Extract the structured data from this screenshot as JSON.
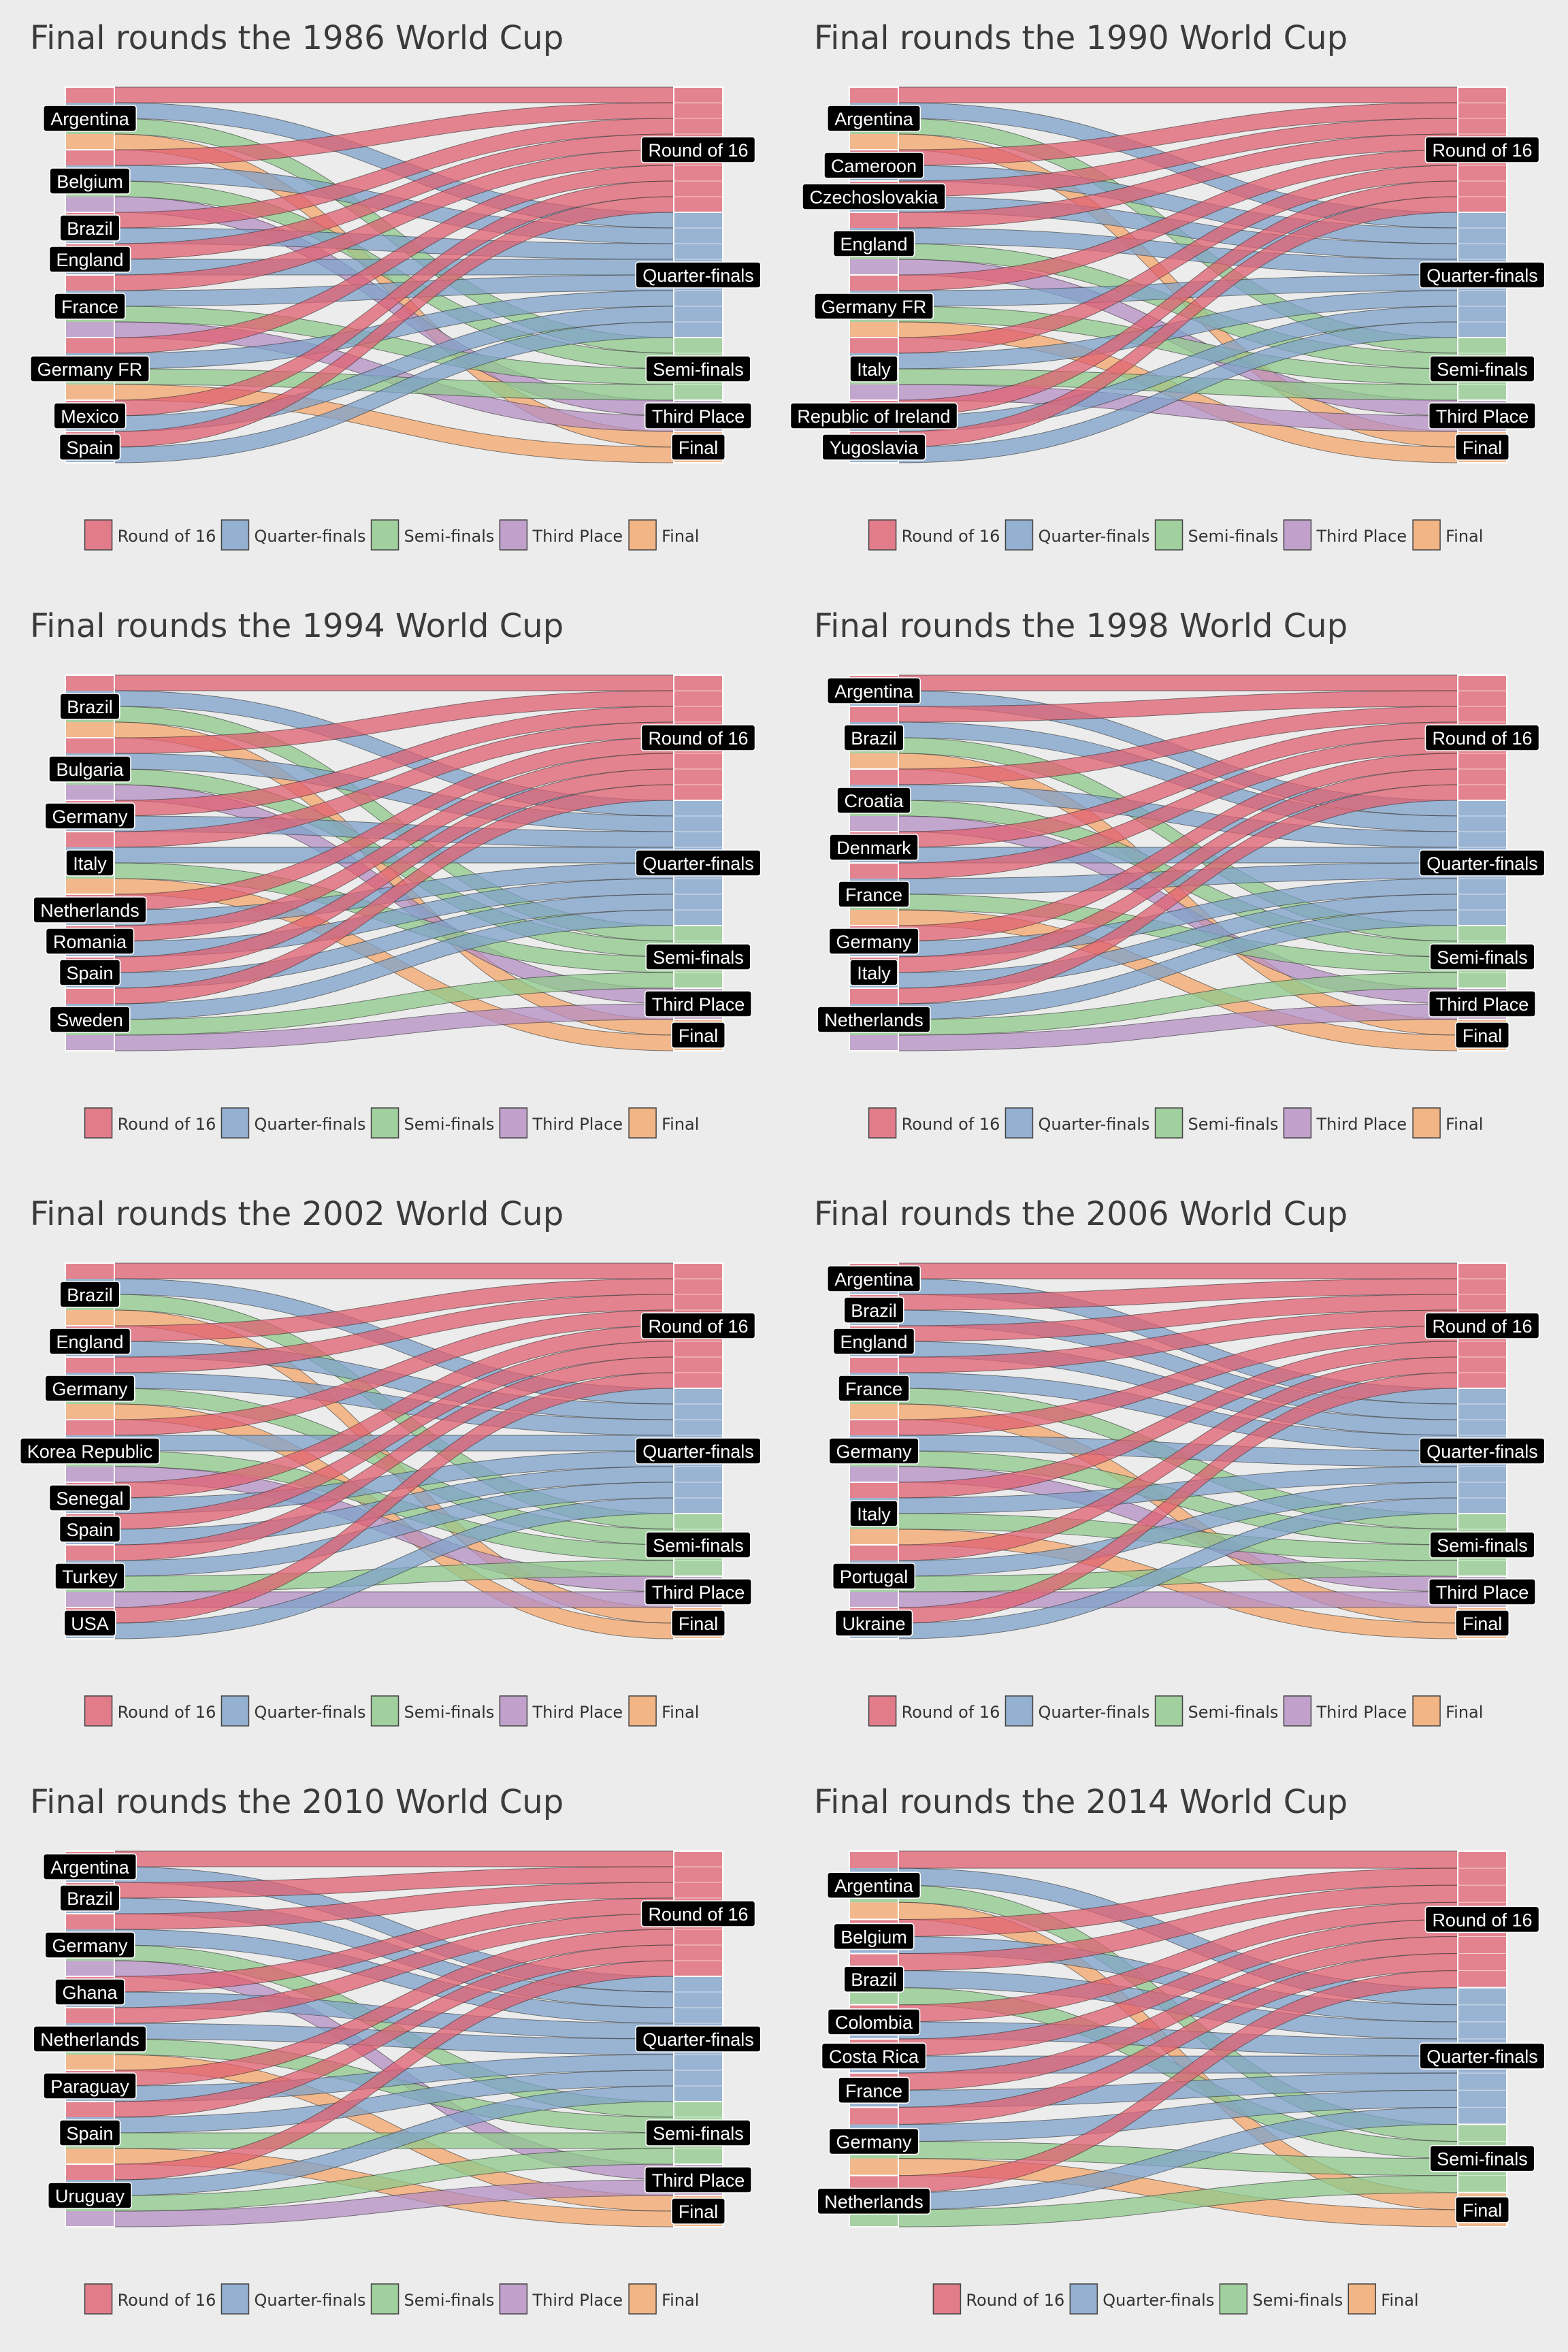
{
  "colors": {
    "Round of 16": "#e06070",
    "Quarter-finals": "#7ea2ca",
    "Semi-finals": "#8fc98b",
    "Third Place": "#b68fc3",
    "Final": "#f4a76b"
  },
  "chart_data": [
    {
      "type": "alluvial",
      "title": "Final rounds the 1986 World Cup",
      "stages": [
        "Round of 16",
        "Quarter-finals",
        "Semi-finals",
        "Third Place",
        "Final"
      ],
      "legend": [
        "Round of 16",
        "Quarter-finals",
        "Semi-finals",
        "Third Place",
        "Final"
      ],
      "teams": [
        {
          "team": "Argentina",
          "segments": [
            "Round of 16",
            "Quarter-finals",
            "Semi-finals",
            "Final"
          ]
        },
        {
          "team": "Belgium",
          "segments": [
            "Round of 16",
            "Quarter-finals",
            "Semi-finals",
            "Third Place"
          ]
        },
        {
          "team": "Brazil",
          "segments": [
            "Round of 16",
            "Quarter-finals"
          ]
        },
        {
          "team": "England",
          "segments": [
            "Round of 16",
            "Quarter-finals"
          ]
        },
        {
          "team": "France",
          "segments": [
            "Round of 16",
            "Quarter-finals",
            "Semi-finals",
            "Third Place"
          ]
        },
        {
          "team": "Germany FR",
          "segments": [
            "Round of 16",
            "Quarter-finals",
            "Semi-finals",
            "Final"
          ]
        },
        {
          "team": "Mexico",
          "segments": [
            "Round of 16",
            "Quarter-finals"
          ]
        },
        {
          "team": "Spain",
          "segments": [
            "Round of 16",
            "Quarter-finals"
          ]
        }
      ]
    },
    {
      "type": "alluvial",
      "title": "Final rounds the 1990 World Cup",
      "stages": [
        "Round of 16",
        "Quarter-finals",
        "Semi-finals",
        "Third Place",
        "Final"
      ],
      "legend": [
        "Round of 16",
        "Quarter-finals",
        "Semi-finals",
        "Third Place",
        "Final"
      ],
      "teams": [
        {
          "team": "Argentina",
          "segments": [
            "Round of 16",
            "Quarter-finals",
            "Semi-finals",
            "Final"
          ]
        },
        {
          "team": "Cameroon",
          "segments": [
            "Round of 16",
            "Quarter-finals"
          ]
        },
        {
          "team": "Czechoslovakia",
          "segments": [
            "Round of 16",
            "Quarter-finals"
          ]
        },
        {
          "team": "England",
          "segments": [
            "Round of 16",
            "Quarter-finals",
            "Semi-finals",
            "Third Place"
          ]
        },
        {
          "team": "Germany FR",
          "segments": [
            "Round of 16",
            "Quarter-finals",
            "Semi-finals",
            "Final"
          ]
        },
        {
          "team": "Italy",
          "segments": [
            "Round of 16",
            "Quarter-finals",
            "Semi-finals",
            "Third Place"
          ]
        },
        {
          "team": "Republic of Ireland",
          "segments": [
            "Round of 16",
            "Quarter-finals"
          ]
        },
        {
          "team": "Yugoslavia",
          "segments": [
            "Round of 16",
            "Quarter-finals"
          ]
        }
      ]
    },
    {
      "type": "alluvial",
      "title": "Final rounds the 1994 World Cup",
      "stages": [
        "Round of 16",
        "Quarter-finals",
        "Semi-finals",
        "Third Place",
        "Final"
      ],
      "legend": [
        "Round of 16",
        "Quarter-finals",
        "Semi-finals",
        "Third Place",
        "Final"
      ],
      "teams": [
        {
          "team": "Brazil",
          "segments": [
            "Round of 16",
            "Quarter-finals",
            "Semi-finals",
            "Final"
          ]
        },
        {
          "team": "Bulgaria",
          "segments": [
            "Round of 16",
            "Quarter-finals",
            "Semi-finals",
            "Third Place"
          ]
        },
        {
          "team": "Germany",
          "segments": [
            "Round of 16",
            "Quarter-finals"
          ]
        },
        {
          "team": "Italy",
          "segments": [
            "Round of 16",
            "Quarter-finals",
            "Semi-finals",
            "Final"
          ]
        },
        {
          "team": "Netherlands",
          "segments": [
            "Round of 16",
            "Quarter-finals"
          ]
        },
        {
          "team": "Romania",
          "segments": [
            "Round of 16",
            "Quarter-finals"
          ]
        },
        {
          "team": "Spain",
          "segments": [
            "Round of 16",
            "Quarter-finals"
          ]
        },
        {
          "team": "Sweden",
          "segments": [
            "Round of 16",
            "Quarter-finals",
            "Semi-finals",
            "Third Place"
          ]
        }
      ]
    },
    {
      "type": "alluvial",
      "title": "Final rounds the 1998 World Cup",
      "stages": [
        "Round of 16",
        "Quarter-finals",
        "Semi-finals",
        "Third Place",
        "Final"
      ],
      "legend": [
        "Round of 16",
        "Quarter-finals",
        "Semi-finals",
        "Third Place",
        "Final"
      ],
      "teams": [
        {
          "team": "Argentina",
          "segments": [
            "Round of 16",
            "Quarter-finals"
          ]
        },
        {
          "team": "Brazil",
          "segments": [
            "Round of 16",
            "Quarter-finals",
            "Semi-finals",
            "Final"
          ]
        },
        {
          "team": "Croatia",
          "segments": [
            "Round of 16",
            "Quarter-finals",
            "Semi-finals",
            "Third Place"
          ]
        },
        {
          "team": "Denmark",
          "segments": [
            "Round of 16",
            "Quarter-finals"
          ]
        },
        {
          "team": "France",
          "segments": [
            "Round of 16",
            "Quarter-finals",
            "Semi-finals",
            "Final"
          ]
        },
        {
          "team": "Germany",
          "segments": [
            "Round of 16",
            "Quarter-finals"
          ]
        },
        {
          "team": "Italy",
          "segments": [
            "Round of 16",
            "Quarter-finals"
          ]
        },
        {
          "team": "Netherlands",
          "segments": [
            "Round of 16",
            "Quarter-finals",
            "Semi-finals",
            "Third Place"
          ]
        }
      ]
    },
    {
      "type": "alluvial",
      "title": "Final rounds the 2002 World Cup",
      "stages": [
        "Round of 16",
        "Quarter-finals",
        "Semi-finals",
        "Third Place",
        "Final"
      ],
      "legend": [
        "Round of 16",
        "Quarter-finals",
        "Semi-finals",
        "Third Place",
        "Final"
      ],
      "teams": [
        {
          "team": "Brazil",
          "segments": [
            "Round of 16",
            "Quarter-finals",
            "Semi-finals",
            "Final"
          ]
        },
        {
          "team": "England",
          "segments": [
            "Round of 16",
            "Quarter-finals"
          ]
        },
        {
          "team": "Germany",
          "segments": [
            "Round of 16",
            "Quarter-finals",
            "Semi-finals",
            "Final"
          ]
        },
        {
          "team": "Korea Republic",
          "segments": [
            "Round of 16",
            "Quarter-finals",
            "Semi-finals",
            "Third Place"
          ]
        },
        {
          "team": "Senegal",
          "segments": [
            "Round of 16",
            "Quarter-finals"
          ]
        },
        {
          "team": "Spain",
          "segments": [
            "Round of 16",
            "Quarter-finals"
          ]
        },
        {
          "team": "Turkey",
          "segments": [
            "Round of 16",
            "Quarter-finals",
            "Semi-finals",
            "Third Place"
          ]
        },
        {
          "team": "USA",
          "segments": [
            "Round of 16",
            "Quarter-finals"
          ]
        }
      ]
    },
    {
      "type": "alluvial",
      "title": "Final rounds the 2006 World Cup",
      "stages": [
        "Round of 16",
        "Quarter-finals",
        "Semi-finals",
        "Third Place",
        "Final"
      ],
      "legend": [
        "Round of 16",
        "Quarter-finals",
        "Semi-finals",
        "Third Place",
        "Final"
      ],
      "teams": [
        {
          "team": "Argentina",
          "segments": [
            "Round of 16",
            "Quarter-finals"
          ]
        },
        {
          "team": "Brazil",
          "segments": [
            "Round of 16",
            "Quarter-finals"
          ]
        },
        {
          "team": "England",
          "segments": [
            "Round of 16",
            "Quarter-finals"
          ]
        },
        {
          "team": "France",
          "segments": [
            "Round of 16",
            "Quarter-finals",
            "Semi-finals",
            "Final"
          ]
        },
        {
          "team": "Germany",
          "segments": [
            "Round of 16",
            "Quarter-finals",
            "Semi-finals",
            "Third Place"
          ]
        },
        {
          "team": "Italy",
          "segments": [
            "Round of 16",
            "Quarter-finals",
            "Semi-finals",
            "Final"
          ]
        },
        {
          "team": "Portugal",
          "segments": [
            "Round of 16",
            "Quarter-finals",
            "Semi-finals",
            "Third Place"
          ]
        },
        {
          "team": "Ukraine",
          "segments": [
            "Round of 16",
            "Quarter-finals"
          ]
        }
      ]
    },
    {
      "type": "alluvial",
      "title": "Final rounds the 2010 World Cup",
      "stages": [
        "Round of 16",
        "Quarter-finals",
        "Semi-finals",
        "Third Place",
        "Final"
      ],
      "legend": [
        "Round of 16",
        "Quarter-finals",
        "Semi-finals",
        "Third Place",
        "Final"
      ],
      "teams": [
        {
          "team": "Argentina",
          "segments": [
            "Round of 16",
            "Quarter-finals"
          ]
        },
        {
          "team": "Brazil",
          "segments": [
            "Round of 16",
            "Quarter-finals"
          ]
        },
        {
          "team": "Germany",
          "segments": [
            "Round of 16",
            "Quarter-finals",
            "Semi-finals",
            "Third Place"
          ]
        },
        {
          "team": "Ghana",
          "segments": [
            "Round of 16",
            "Quarter-finals"
          ]
        },
        {
          "team": "Netherlands",
          "segments": [
            "Round of 16",
            "Quarter-finals",
            "Semi-finals",
            "Final"
          ]
        },
        {
          "team": "Paraguay",
          "segments": [
            "Round of 16",
            "Quarter-finals"
          ]
        },
        {
          "team": "Spain",
          "segments": [
            "Round of 16",
            "Quarter-finals",
            "Semi-finals",
            "Final"
          ]
        },
        {
          "team": "Uruguay",
          "segments": [
            "Round of 16",
            "Quarter-finals",
            "Semi-finals",
            "Third Place"
          ]
        }
      ]
    },
    {
      "type": "alluvial",
      "title": "Final rounds the 2014 World Cup",
      "stages": [
        "Round of 16",
        "Quarter-finals",
        "Semi-finals",
        "Final"
      ],
      "legend": [
        "Round of 16",
        "Quarter-finals",
        "Semi-finals",
        "Final"
      ],
      "teams": [
        {
          "team": "Argentina",
          "segments": [
            "Round of 16",
            "Quarter-finals",
            "Semi-finals",
            "Final"
          ]
        },
        {
          "team": "Belgium",
          "segments": [
            "Round of 16",
            "Quarter-finals"
          ]
        },
        {
          "team": "Brazil",
          "segments": [
            "Round of 16",
            "Quarter-finals",
            "Semi-finals"
          ]
        },
        {
          "team": "Colombia",
          "segments": [
            "Round of 16",
            "Quarter-finals"
          ]
        },
        {
          "team": "Costa Rica",
          "segments": [
            "Round of 16",
            "Quarter-finals"
          ]
        },
        {
          "team": "France",
          "segments": [
            "Round of 16",
            "Quarter-finals"
          ]
        },
        {
          "team": "Germany",
          "segments": [
            "Round of 16",
            "Quarter-finals",
            "Semi-finals",
            "Final"
          ]
        },
        {
          "team": "Netherlands",
          "segments": [
            "Round of 16",
            "Quarter-finals",
            "Semi-finals"
          ]
        }
      ]
    }
  ]
}
